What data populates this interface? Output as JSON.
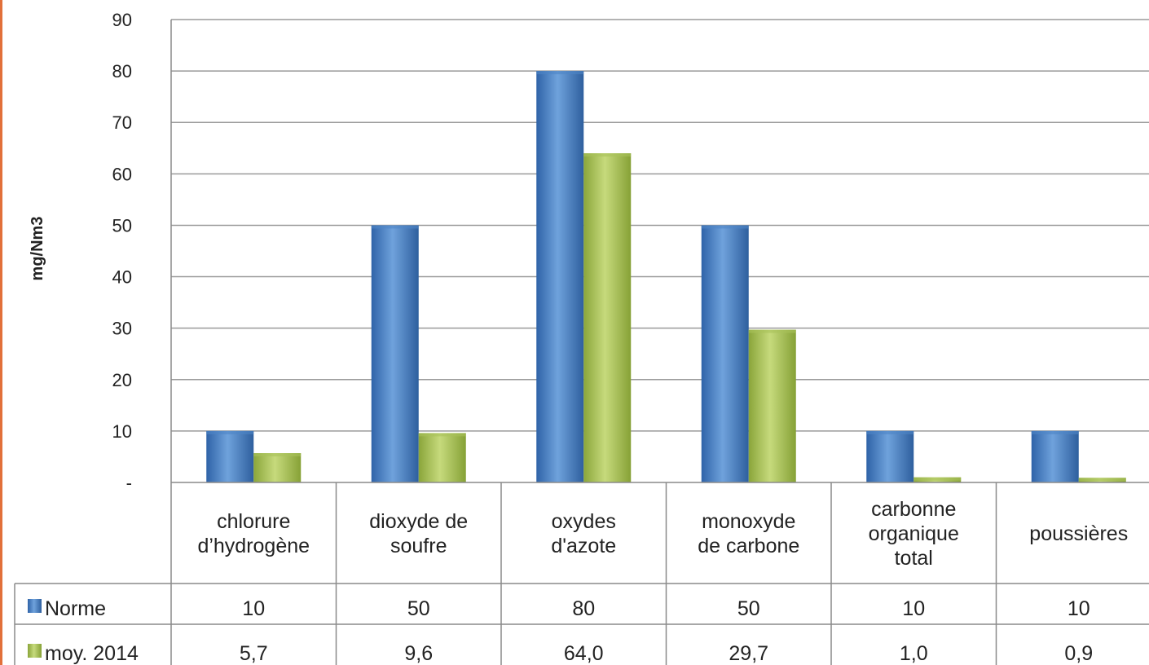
{
  "chart_data": {
    "type": "bar",
    "ylabel": "mg/Nm3",
    "ylim": [
      0,
      90
    ],
    "yticks": [
      {
        "value": 0,
        "label": "-"
      },
      {
        "value": 10,
        "label": "10"
      },
      {
        "value": 20,
        "label": "20"
      },
      {
        "value": 30,
        "label": "30"
      },
      {
        "value": 40,
        "label": "40"
      },
      {
        "value": 50,
        "label": "50"
      },
      {
        "value": 60,
        "label": "60"
      },
      {
        "value": 70,
        "label": "70"
      },
      {
        "value": 80,
        "label": "80"
      },
      {
        "value": 90,
        "label": "90"
      }
    ],
    "grid": true,
    "categories": [
      [
        "chlorure",
        "d’hydrogène"
      ],
      [
        "dioxyde de",
        "soufre"
      ],
      [
        "oxydes",
        "d'azote"
      ],
      [
        "monoxyde",
        "de carbone"
      ],
      [
        "carbonne",
        "organique",
        "total"
      ],
      [
        "poussières"
      ]
    ],
    "series": [
      {
        "name": "Norme",
        "color": "#4f86c6",
        "values": [
          10,
          50,
          80,
          50,
          10,
          10
        ],
        "labels": [
          "10",
          "50",
          "80",
          "50",
          "10",
          "10"
        ]
      },
      {
        "name": "moy. 2014",
        "color": "#a9c25a",
        "values": [
          5.7,
          9.6,
          64.0,
          29.7,
          1.0,
          0.9
        ],
        "labels": [
          "5,7",
          "9,6",
          "64,0",
          "29,7",
          "1,0",
          "0,9"
        ]
      }
    ],
    "legend": "data-table"
  },
  "colors": {
    "axis": "#8a8a8a",
    "grid": "#9a9a9a",
    "edge": "#e2703a"
  }
}
